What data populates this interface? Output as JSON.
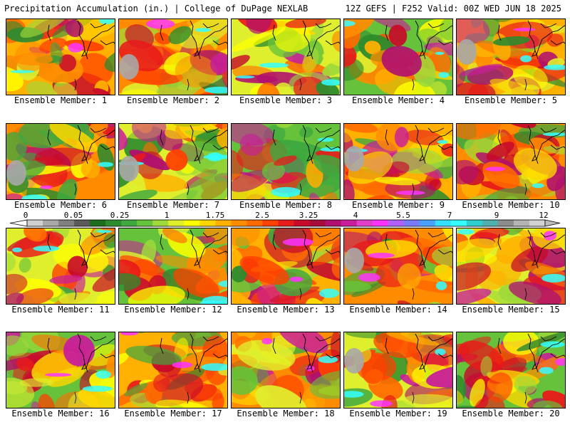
{
  "header": {
    "left_title": "Precipitation Accumulation (in.) | College of DuPage NEXLAB",
    "right_title": "12Z GEFS | F252 Valid: 00Z WED JUN 18 2025"
  },
  "legend": {
    "tick_labels": [
      "0",
      "0.05",
      "0.25",
      "1",
      "1.75",
      "2.5",
      "3.25",
      "4",
      "5.5",
      "7",
      "9",
      "12"
    ],
    "colors": [
      "#d0d0d0",
      "#a8a8a8",
      "#808080",
      "#5a5a5a",
      "#1e6e1e",
      "#2e8b2e",
      "#3fa83f",
      "#66c23a",
      "#9fd93a",
      "#dfef2e",
      "#ffff00",
      "#ffd700",
      "#ffb000",
      "#ff8c00",
      "#ff6a00",
      "#ff4000",
      "#e81a1a",
      "#c80a2a",
      "#a80a3a",
      "#b0106e",
      "#c81e9a",
      "#e040c8",
      "#ff33ff",
      "#b060ff",
      "#7a7aff",
      "#4aa0ff",
      "#33e0ff",
      "#33ffff",
      "#2ecfcf",
      "#50b0b0",
      "#8c8c8c",
      "#b4b4b4",
      "#d2d2d2"
    ]
  },
  "panels": [
    {
      "label": "Ensemble Member: 1"
    },
    {
      "label": "Ensemble Member: 2"
    },
    {
      "label": "Ensemble Member: 3"
    },
    {
      "label": "Ensemble Member: 4"
    },
    {
      "label": "Ensemble Member: 5"
    },
    {
      "label": "Ensemble Member: 6"
    },
    {
      "label": "Ensemble Member: 7"
    },
    {
      "label": "Ensemble Member: 8"
    },
    {
      "label": "Ensemble Member: 9"
    },
    {
      "label": "Ensemble Member: 10"
    },
    {
      "label": "Ensemble Member: 11"
    },
    {
      "label": "Ensemble Member: 12"
    },
    {
      "label": "Ensemble Member: 13"
    },
    {
      "label": "Ensemble Member: 14"
    },
    {
      "label": "Ensemble Member: 15"
    },
    {
      "label": "Ensemble Member: 16"
    },
    {
      "label": "Ensemble Member: 17"
    },
    {
      "label": "Ensemble Member: 18"
    },
    {
      "label": "Ensemble Member: 19"
    },
    {
      "label": "Ensemble Member: 20"
    }
  ]
}
